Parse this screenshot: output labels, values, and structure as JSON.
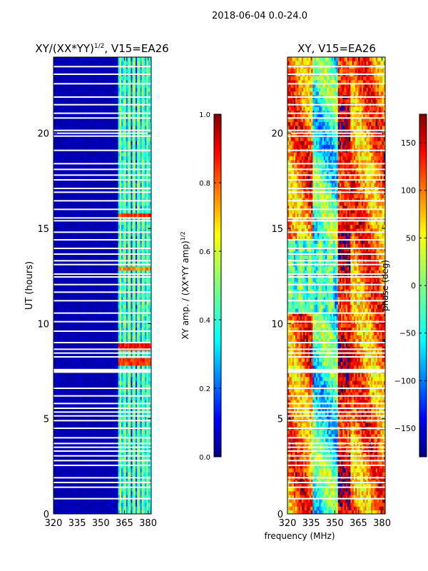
{
  "figure": {
    "suptitle": "2018-06-04 0.0-24.0",
    "shared_xlabel": "frequency (MHz)"
  },
  "colors": {
    "jet": [
      "#00007f",
      "#0000ff",
      "#007fff",
      "#00ffff",
      "#7fff7f",
      "#ffff00",
      "#ff7f00",
      "#ff0000",
      "#7f0000"
    ],
    "gap_rows": "#ffffff",
    "frame": "#000000"
  },
  "chart_data": [
    {
      "type": "heatmap",
      "name": "amplitude-ratio",
      "title_main": "XY/(XX*YY)",
      "title_exp": "1/2",
      "title_rest": ", V15=EA26",
      "xlabel": "",
      "ylabel": "UT (hours)",
      "xlim": [
        320,
        382
      ],
      "ylim": [
        0,
        24
      ],
      "xticks": [
        "320",
        "335",
        "350",
        "365",
        "380"
      ],
      "xtick_values": [
        320,
        335,
        350,
        365,
        380
      ],
      "yticks": [
        "0",
        "5",
        "10",
        "15",
        "20"
      ],
      "ytick_values": [
        0,
        5,
        10,
        15,
        20
      ],
      "value_range": [
        0.0,
        1.0
      ],
      "description_bands": [
        {
          "freq_start": 320,
          "freq_end": 360,
          "level": 0.03
        },
        {
          "freq_start": 361,
          "freq_end": 382,
          "level": 0.35
        }
      ],
      "hot_events": [
        {
          "ut": 8.0,
          "level": 0.9
        },
        {
          "ut": 8.8,
          "level": 0.95
        },
        {
          "ut": 12.9,
          "level": 0.8
        },
        {
          "ut": 15.7,
          "level": 0.9
        }
      ],
      "colorbar": {
        "label_main": "XY amp. / (XX*YY amp)",
        "label_exp": "1/2",
        "ticks": [
          "0.0",
          "0.2",
          "0.4",
          "0.6",
          "0.8",
          "1.0"
        ],
        "tick_values": [
          0.0,
          0.2,
          0.4,
          0.6,
          0.8,
          1.0
        ],
        "range": [
          0.0,
          1.0
        ]
      }
    },
    {
      "type": "heatmap",
      "name": "phase",
      "title_main": "XY, V15=EA26",
      "xlabel": "frequency (MHz)",
      "ylabel": "phase (deg)",
      "xlim": [
        320,
        382
      ],
      "ylim": [
        0,
        24
      ],
      "xticks": [
        "320",
        "335",
        "350",
        "365",
        "380"
      ],
      "xtick_values": [
        320,
        335,
        350,
        365,
        380
      ],
      "yticks": [
        "0",
        "5",
        "10",
        "15",
        "20"
      ],
      "ytick_values": [
        0,
        5,
        10,
        15,
        20
      ],
      "value_range": [
        -180,
        180
      ],
      "colorbar": {
        "label_main": "phase (deg)",
        "ticks": [
          "−150",
          "−100",
          "−50",
          "0",
          "50",
          "100",
          "150"
        ],
        "tick_values": [
          -150,
          -100,
          -50,
          0,
          50,
          100,
          150
        ],
        "range": [
          -180,
          180
        ]
      }
    }
  ],
  "gap_times_ut": [
    0.8,
    1.4,
    1.65,
    1.9,
    2.55,
    2.8,
    3.05,
    3.3,
    3.5,
    3.7,
    4.0,
    4.5,
    4.9,
    5.15,
    5.35,
    5.55,
    5.8,
    6.2,
    6.6,
    7.45,
    8.25,
    8.45,
    8.65,
    9.0,
    9.6,
    10.1,
    10.55,
    11.2,
    11.65,
    12.05,
    12.45,
    12.6,
    13.1,
    13.3,
    13.65,
    13.95,
    14.4,
    14.8,
    15.4,
    15.55,
    16.0,
    16.45,
    16.9,
    17.1,
    17.55,
    17.8,
    18.1,
    18.4,
    19.1,
    19.85,
    20.0,
    20.15,
    20.8,
    21.05,
    21.5,
    21.9,
    22.6,
    23.1,
    23.5
  ],
  "wide_gaps_ut": [
    [
      7.42,
      7.62
    ]
  ]
}
